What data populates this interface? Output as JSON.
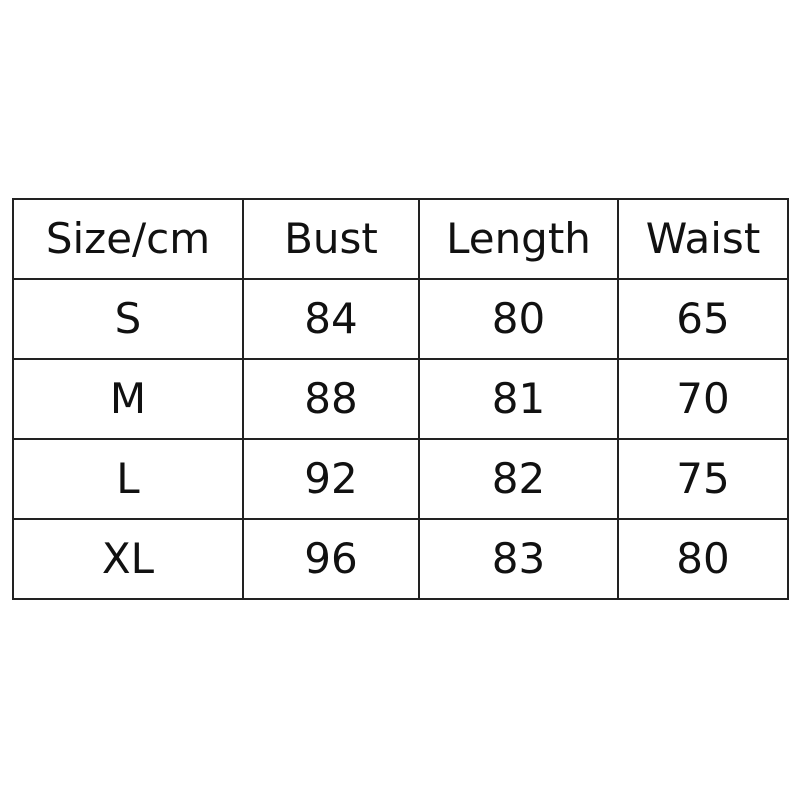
{
  "table": {
    "headers": [
      "Size/cm",
      "Bust",
      "Length",
      "Waist"
    ],
    "rows": [
      [
        "S",
        "84",
        "80",
        "65"
      ],
      [
        "M",
        "88",
        "81",
        "70"
      ],
      [
        "L",
        "92",
        "82",
        "75"
      ],
      [
        "XL",
        "96",
        "83",
        "80"
      ]
    ]
  }
}
